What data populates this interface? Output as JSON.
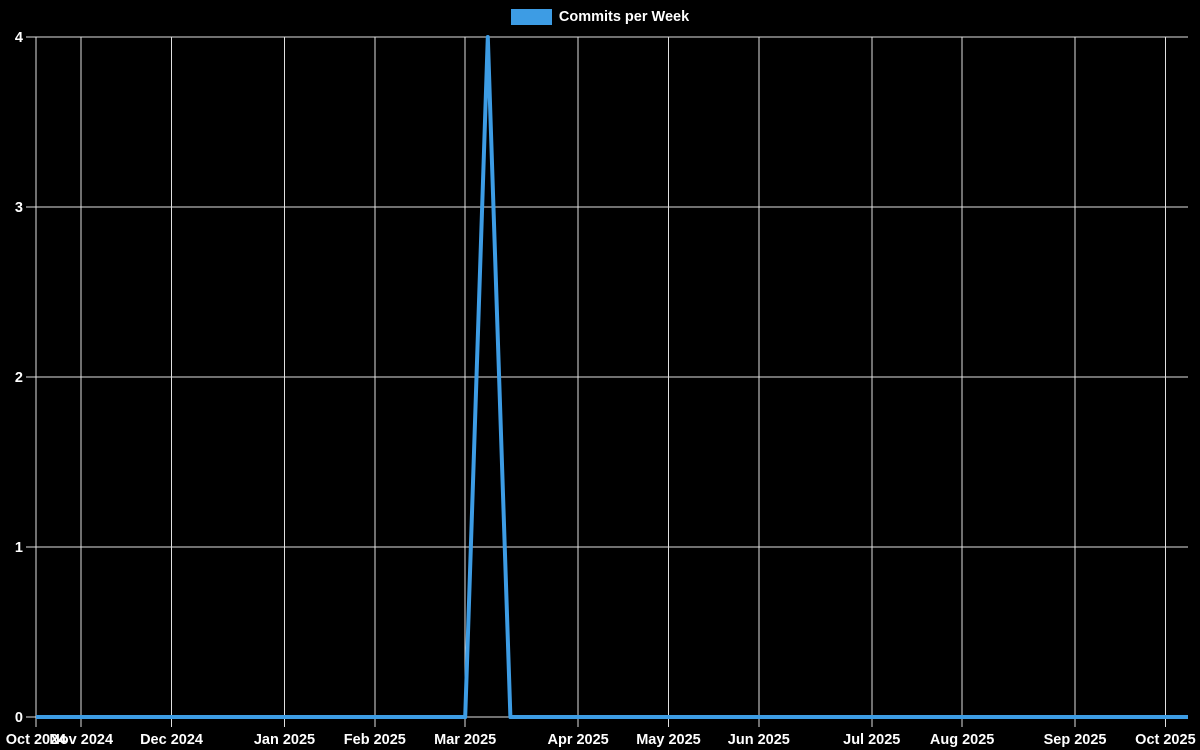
{
  "colors": {
    "background": "#000000",
    "grid": "#e0e0e0",
    "axis_text": "#ffffff",
    "line": "#3d9ce4"
  },
  "legend": {
    "label": "Commits per Week",
    "swatch_color": "#3d9ce4"
  },
  "chart_data": {
    "type": "line",
    "title": "Commits per Week",
    "xlabel": "",
    "ylabel": "",
    "x_unit": "week index (one data point per week, mid-Oct 2024 through mid-Oct 2025)",
    "grid": true,
    "legend_position": "top-center",
    "ylim": [
      0,
      4
    ],
    "y_ticks": [
      0,
      1,
      2,
      3,
      4
    ],
    "x_ticks": [
      {
        "label": "Oct 2024",
        "week": 0
      },
      {
        "label": "Nov 2024",
        "week": 2
      },
      {
        "label": "Dec 2024",
        "week": 6
      },
      {
        "label": "Jan 2025",
        "week": 11
      },
      {
        "label": "Feb 2025",
        "week": 15
      },
      {
        "label": "Mar 2025",
        "week": 19
      },
      {
        "label": "Apr 2025",
        "week": 24
      },
      {
        "label": "May 2025",
        "week": 28
      },
      {
        "label": "Jun 2025",
        "week": 32
      },
      {
        "label": "Jul 2025",
        "week": 37
      },
      {
        "label": "Aug 2025",
        "week": 41
      },
      {
        "label": "Sep 2025",
        "week": 46
      },
      {
        "label": "Oct 2025",
        "week": 50
      }
    ],
    "series": [
      {
        "name": "Commits per Week",
        "color": "#3d9ce4",
        "values": [
          0,
          0,
          0,
          0,
          0,
          0,
          0,
          0,
          0,
          0,
          0,
          0,
          0,
          0,
          0,
          0,
          0,
          0,
          0,
          0,
          4,
          0,
          0,
          0,
          0,
          0,
          0,
          0,
          0,
          0,
          0,
          0,
          0,
          0,
          0,
          0,
          0,
          0,
          0,
          0,
          0,
          0,
          0,
          0,
          0,
          0,
          0,
          0,
          0,
          0,
          0,
          0
        ]
      }
    ]
  }
}
